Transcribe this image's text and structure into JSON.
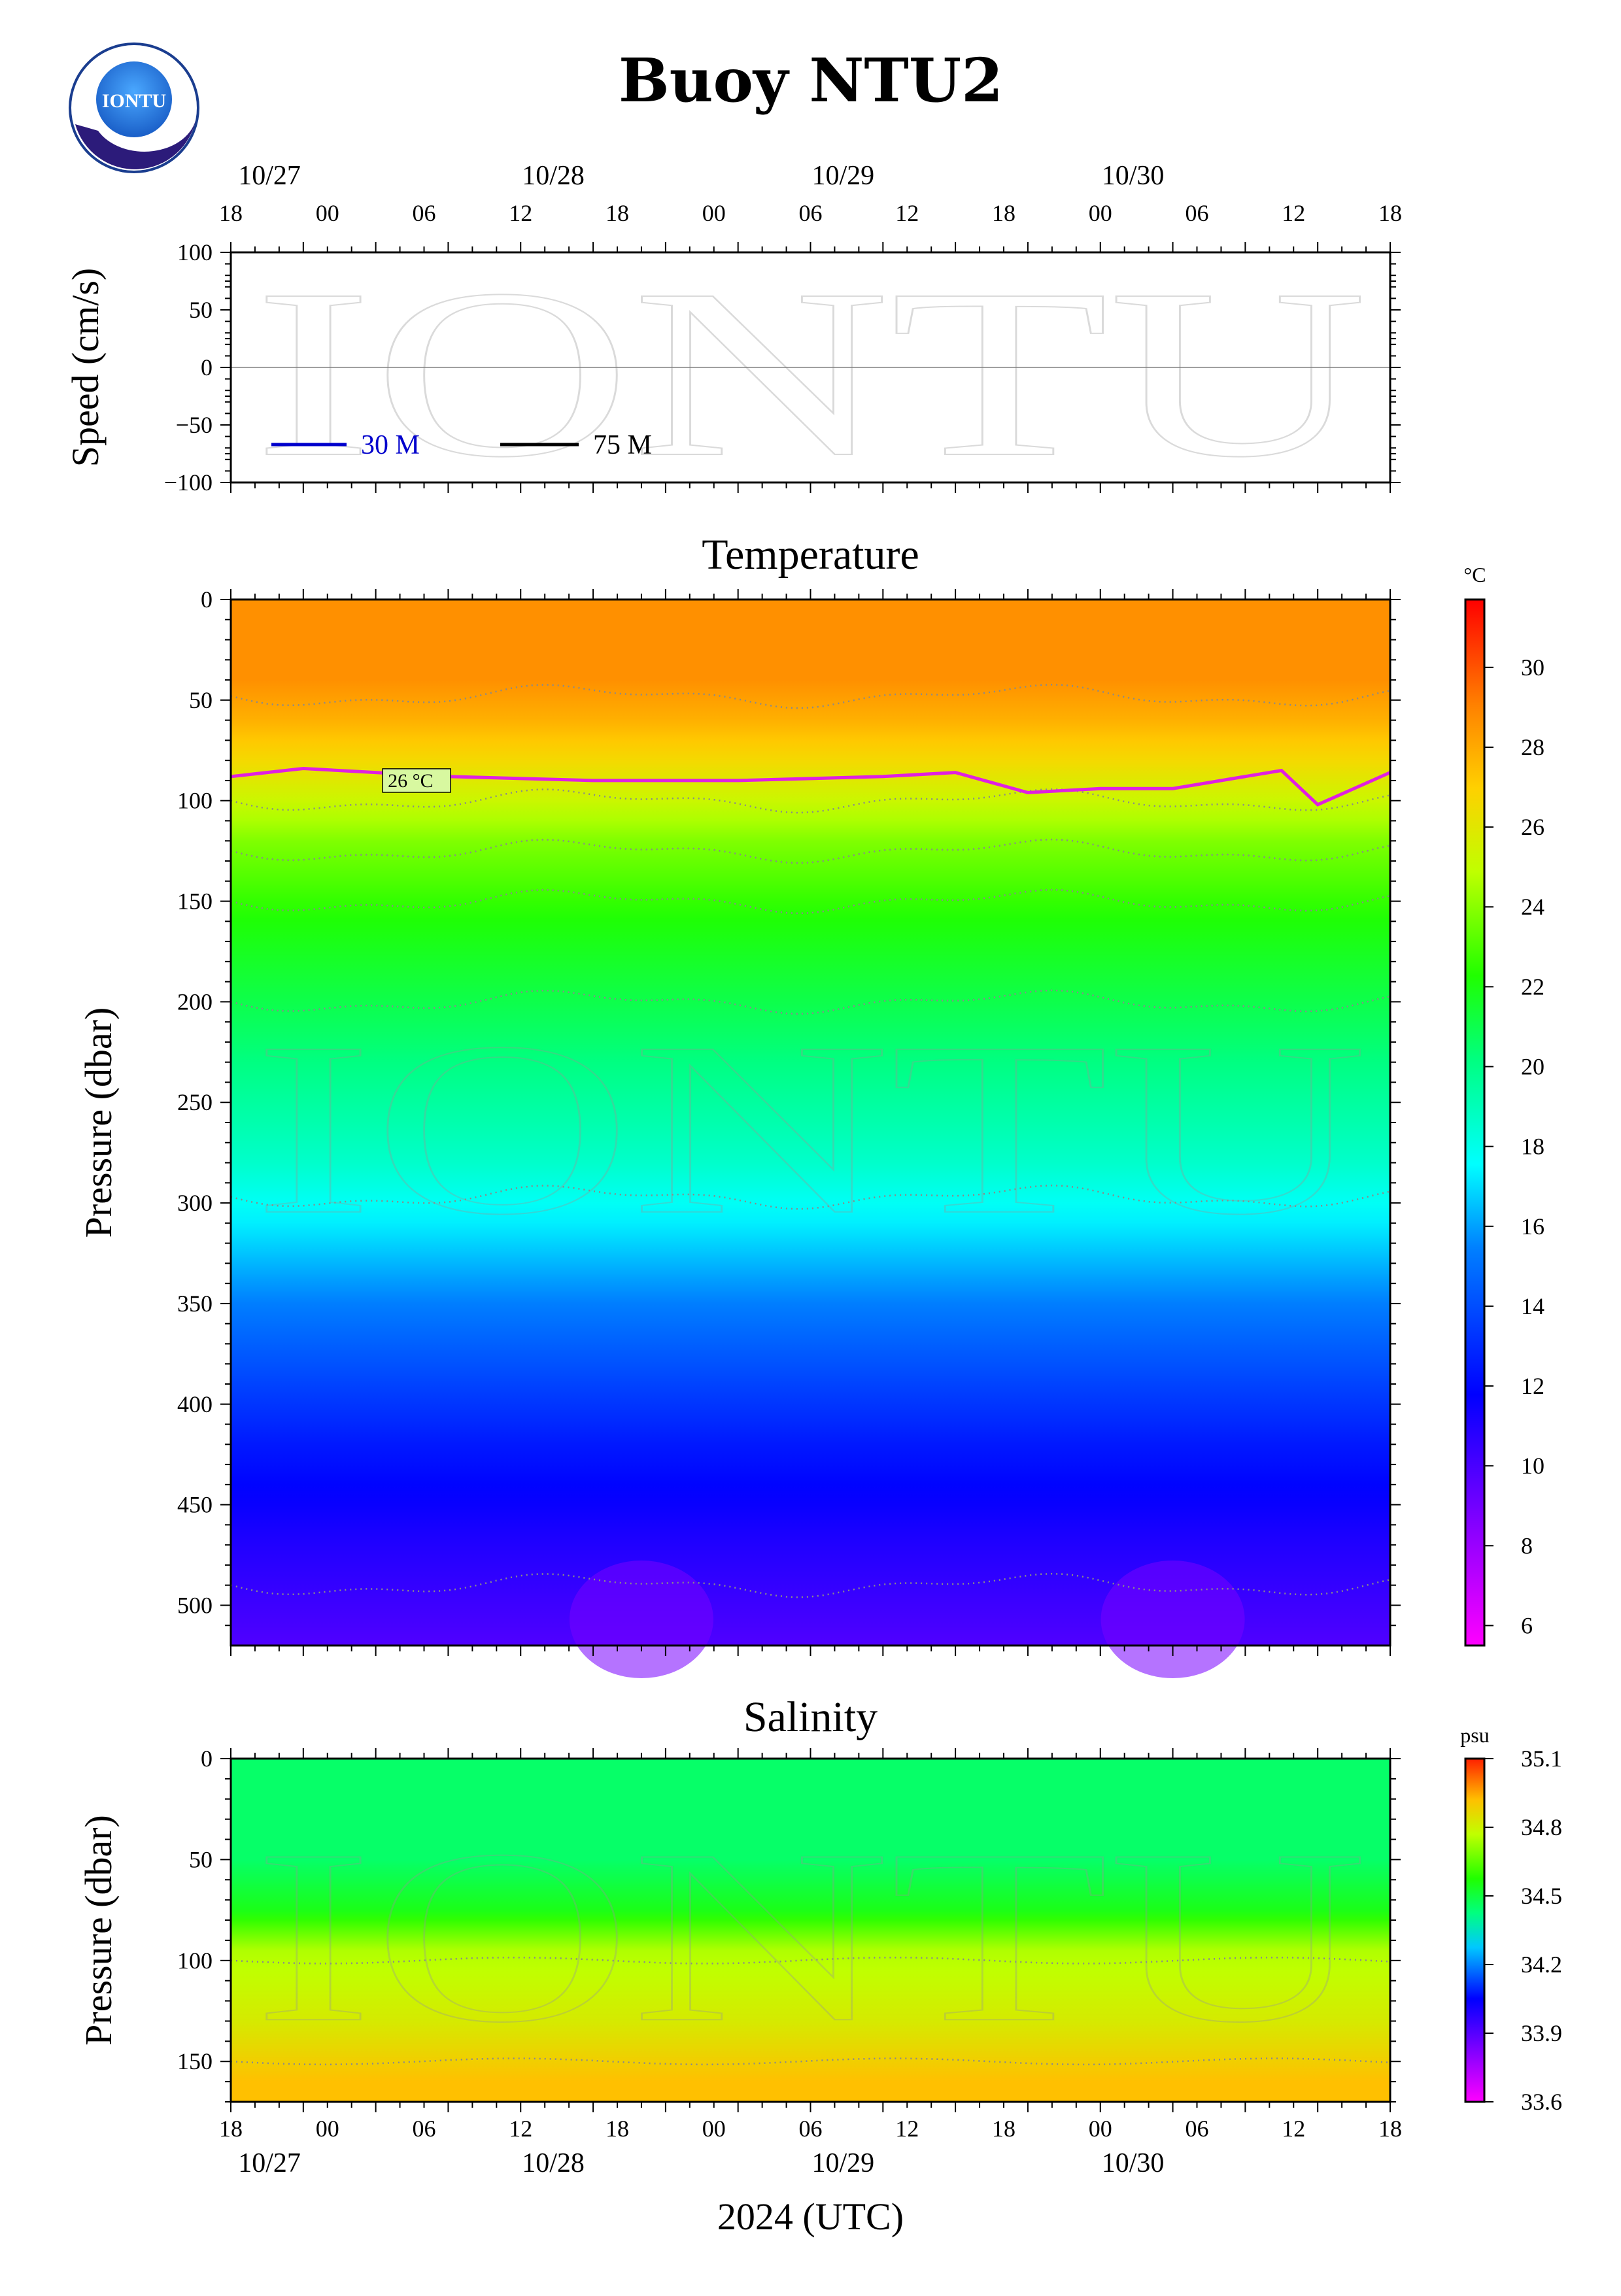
{
  "title": "Buoy NTU2",
  "logo_text": "IONTU",
  "watermark_text": "IONTU",
  "x_axis": {
    "label": "2024 (UTC)",
    "start": "2024-10-26T18:00Z",
    "end": "2024-10-30T18:00Z",
    "hour_ticks": [
      "18",
      "00",
      "06",
      "12",
      "18",
      "00",
      "06",
      "12",
      "18",
      "00",
      "06",
      "12",
      "18"
    ],
    "date_labels": [
      "10/27",
      "10/28",
      "10/29",
      "10/30"
    ]
  },
  "speed_panel": {
    "ylabel": "Speed (cm/s)",
    "yticks": [
      "100",
      "50",
      "0",
      "−50",
      "−100"
    ],
    "legend": [
      {
        "label": "30 M",
        "color": "#0000cc"
      },
      {
        "label": "75 M",
        "color": "#000000"
      }
    ]
  },
  "temperature_panel": {
    "title": "Temperature",
    "ylabel": "Pressure (dbar)",
    "yticks": [
      "0",
      "50",
      "100",
      "150",
      "200",
      "250",
      "300",
      "350",
      "400",
      "450",
      "500"
    ],
    "unit": "°C",
    "colorbar_ticks": [
      "30",
      "28",
      "26",
      "24",
      "22",
      "20",
      "18",
      "16",
      "14",
      "12",
      "10",
      "8",
      "6"
    ],
    "contour_label": "26 °C",
    "contour_color": "#e020e0"
  },
  "salinity_panel": {
    "title": "Salinity",
    "ylabel": "Pressure (dbar)",
    "yticks": [
      "0",
      "50",
      "100",
      "150"
    ],
    "unit": "psu",
    "colorbar_ticks": [
      "35.1",
      "34.8",
      "34.5",
      "34.2",
      "33.9",
      "33.6"
    ]
  },
  "chart_data": [
    {
      "type": "line",
      "title": "",
      "ylabel": "Speed (cm/s)",
      "xlabel": "2024 (UTC)",
      "ylim": [
        -100,
        100
      ],
      "xlim": [
        "2024-10-26T18:00Z",
        "2024-10-30T18:00Z"
      ],
      "series": [
        {
          "name": "30 M",
          "color": "#0000cc",
          "values": []
        },
        {
          "name": "75 M",
          "color": "#000000",
          "values": []
        }
      ]
    },
    {
      "type": "heatmap",
      "title": "Temperature",
      "ylabel": "Pressure (dbar)",
      "ylim": [
        520,
        0
      ],
      "colorbar": {
        "unit": "°C",
        "range": [
          5.5,
          31.7
        ]
      },
      "temperature_profile": [
        {
          "p": 0,
          "t": 28.6
        },
        {
          "p": 40,
          "t": 28.6
        },
        {
          "p": 60,
          "t": 27.8
        },
        {
          "p": 80,
          "t": 26.6
        },
        {
          "p": 95,
          "t": 25.5
        },
        {
          "p": 120,
          "t": 23.8
        },
        {
          "p": 160,
          "t": 22.2
        },
        {
          "p": 220,
          "t": 20.5
        },
        {
          "p": 280,
          "t": 18.6
        },
        {
          "p": 320,
          "t": 16.8
        },
        {
          "p": 360,
          "t": 15.0
        },
        {
          "p": 420,
          "t": 12.5
        },
        {
          "p": 470,
          "t": 11.0
        },
        {
          "p": 520,
          "t": 9.8
        }
      ],
      "contour_26C": {
        "label": "26 °C",
        "time": [
          "10/26 18:00",
          "10/27 00:00",
          "10/27 12:00",
          "10/28 00:00",
          "10/28 12:00",
          "10/29 00:00",
          "10/29 06:00",
          "10/29 12:00",
          "10/29 18:00",
          "10/30 00:00",
          "10/30 09:00",
          "10/30 12:00",
          "10/30 18:00"
        ],
        "pressure_dbar": [
          88,
          84,
          88,
          90,
          90,
          88,
          86,
          96,
          94,
          94,
          85,
          102,
          86
        ]
      }
    },
    {
      "type": "heatmap",
      "title": "Salinity",
      "ylabel": "Pressure (dbar)",
      "ylim": [
        170,
        0
      ],
      "colorbar": {
        "unit": "psu",
        "range": [
          33.6,
          35.1
        ]
      },
      "salinity_profile": [
        {
          "p": 0,
          "s": 34.45
        },
        {
          "p": 50,
          "s": 34.45
        },
        {
          "p": 75,
          "s": 34.55
        },
        {
          "p": 95,
          "s": 34.75
        },
        {
          "p": 130,
          "s": 34.82
        },
        {
          "p": 160,
          "s": 34.92
        }
      ]
    }
  ]
}
